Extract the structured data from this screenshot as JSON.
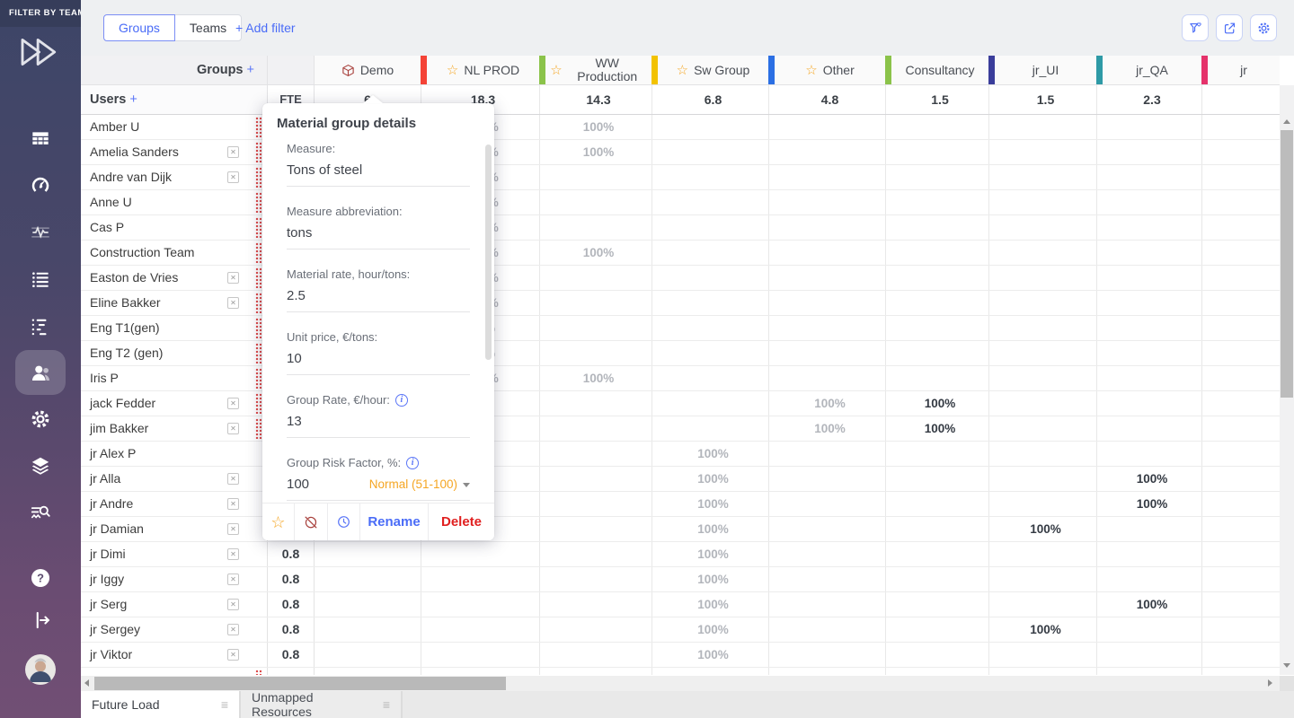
{
  "app": {
    "accent": "#4a6cf7",
    "danger": "#e02020",
    "warning": "#f5a623"
  },
  "sidebar": {
    "filter_header": "FILTER BY TEAM",
    "nav": [
      {
        "icon": "table-icon",
        "active": false
      },
      {
        "icon": "gauge-icon",
        "active": false
      },
      {
        "icon": "activity-icon",
        "active": false
      },
      {
        "icon": "list-icon",
        "active": false
      },
      {
        "icon": "timeline-icon",
        "active": false
      },
      {
        "icon": "users-icon",
        "active": true
      },
      {
        "icon": "gear-icon",
        "active": false
      },
      {
        "icon": "layers-icon",
        "active": false
      },
      {
        "icon": "search-list-icon",
        "active": false
      }
    ],
    "bottom": [
      {
        "icon": "help-icon"
      },
      {
        "icon": "logout-icon"
      },
      {
        "icon": "avatar"
      }
    ]
  },
  "topbar": {
    "view_tabs": [
      {
        "label": "Groups",
        "active": true
      },
      {
        "label": "Teams",
        "active": false
      }
    ],
    "add_filter": "+ Add filter",
    "actions": [
      {
        "icon": "filter-favorite-icon"
      },
      {
        "icon": "export-icon"
      },
      {
        "icon": "settings-icon"
      }
    ]
  },
  "grid": {
    "groups_label": "Groups",
    "groups_plus": "+",
    "users_label": "Users",
    "users_plus": "+",
    "fte_label": "FTE",
    "groups": [
      {
        "name": "Demo",
        "icon": "cube-icon",
        "bar": "#f44336",
        "fte": "6",
        "bold": false
      },
      {
        "name": "NL PROD",
        "icon": "star-icon",
        "bar": "#8bc34a",
        "fte": "18.3",
        "bold": false
      },
      {
        "name": "WW Production",
        "icon": "star-icon",
        "bar": "#f2c200",
        "fte": "14.3",
        "bold": false
      },
      {
        "name": "Sw Group",
        "icon": "star-icon",
        "bar": "#2b6fe4",
        "fte": "6.8",
        "bold": false
      },
      {
        "name": "Other",
        "icon": "star-icon",
        "bar": "#8bc34a",
        "fte": "4.8",
        "bold": false
      },
      {
        "name": "Consultancy",
        "icon": null,
        "bar": "#3a3d9b",
        "fte": "1.5",
        "bold": true
      },
      {
        "name": "jr_UI",
        "icon": null,
        "bar": "#2e9aa6",
        "fte": "1.5",
        "bold": true
      },
      {
        "name": "jr_QA",
        "icon": null,
        "bar": "#e5326b",
        "fte": "2.3",
        "bold": true
      },
      {
        "name": "jr",
        "icon": null,
        "bar": null,
        "fte": "",
        "bold": false
      }
    ],
    "users": [
      {
        "name": "Amber U",
        "removable": false,
        "alert_dots": true,
        "fte": "",
        "alloc": {
          "NL PROD": "100%",
          "WW Production": "100%"
        }
      },
      {
        "name": "Amelia Sanders",
        "removable": true,
        "alert_dots": true,
        "fte": "",
        "alloc": {
          "NL PROD": "100%",
          "WW Production": "100%"
        }
      },
      {
        "name": "Andre van Dijk",
        "removable": true,
        "alert_dots": true,
        "fte": "",
        "alloc": {
          "NL PROD": "100%"
        }
      },
      {
        "name": "Anne U",
        "removable": false,
        "alert_dots": true,
        "fte": "",
        "alloc": {
          "NL PROD": "100%"
        }
      },
      {
        "name": "Cas P",
        "removable": false,
        "alert_dots": true,
        "fte": "",
        "alloc": {
          "NL PROD": "100%"
        }
      },
      {
        "name": "Construction Team",
        "removable": false,
        "alert_dots": true,
        "fte": "",
        "alloc": {
          "NL PROD": "100%",
          "WW Production": "100%"
        }
      },
      {
        "name": "Easton de Vries",
        "removable": true,
        "alert_dots": true,
        "fte": "",
        "alloc": {
          "NL PROD": "100%"
        }
      },
      {
        "name": "Eline Bakker",
        "removable": true,
        "alert_dots": true,
        "fte": "",
        "alloc": {
          "NL PROD": "100%"
        }
      },
      {
        "name": "Eng T1(gen)",
        "removable": false,
        "alert_dots": true,
        "fte": "",
        "alloc": {
          "NL PROD": "50%"
        }
      },
      {
        "name": "Eng T2 (gen)",
        "removable": false,
        "alert_dots": true,
        "fte": "",
        "alloc": {
          "NL PROD": "50%"
        }
      },
      {
        "name": "Iris P",
        "removable": false,
        "alert_dots": true,
        "fte": "",
        "alloc": {
          "NL PROD": "100%",
          "WW Production": "100%"
        }
      },
      {
        "name": "jack Fedder",
        "removable": true,
        "alert_dots": true,
        "fte": "",
        "alloc": {
          "Other": "100%",
          "Consultancy": "100%"
        }
      },
      {
        "name": "jim Bakker",
        "removable": true,
        "alert_dots": true,
        "fte": "",
        "alloc": {
          "Other": "100%",
          "Consultancy": "100%"
        }
      },
      {
        "name": "jr Alex P",
        "removable": false,
        "alert_dots": false,
        "fte": "",
        "alloc": {
          "Sw Group": "100%"
        }
      },
      {
        "name": "jr Alla",
        "removable": true,
        "alert_dots": false,
        "fte": "",
        "alloc": {
          "Sw Group": "100%",
          "jr_QA": "100%"
        }
      },
      {
        "name": "jr Andre",
        "removable": true,
        "alert_dots": false,
        "fte": "",
        "alloc": {
          "Sw Group": "100%",
          "jr_QA": "100%"
        }
      },
      {
        "name": "jr Damian",
        "removable": true,
        "alert_dots": false,
        "fte": "",
        "alloc": {
          "Sw Group": "100%",
          "jr_UI": "100%"
        }
      },
      {
        "name": "jr Dimi",
        "removable": true,
        "alert_dots": false,
        "fte": "0.8",
        "alloc": {
          "Sw Group": "100%"
        }
      },
      {
        "name": "jr Iggy",
        "removable": true,
        "alert_dots": false,
        "fte": "0.8",
        "alloc": {
          "Sw Group": "100%"
        }
      },
      {
        "name": "jr Serg",
        "removable": true,
        "alert_dots": false,
        "fte": "0.8",
        "alloc": {
          "Sw Group": "100%",
          "jr_QA": "100%"
        }
      },
      {
        "name": "jr Sergey",
        "removable": true,
        "alert_dots": false,
        "fte": "0.8",
        "alloc": {
          "Sw Group": "100%",
          "jr_UI": "100%"
        }
      },
      {
        "name": "jr Viktor",
        "removable": true,
        "alert_dots": false,
        "fte": "0.8",
        "alloc": {
          "Sw Group": "100%"
        }
      },
      {
        "name": "",
        "removable": false,
        "alert_dots": true,
        "fte": "",
        "alloc": {}
      }
    ]
  },
  "popup": {
    "title": "Material group details",
    "fields": [
      {
        "label": "Measure:",
        "value": "Tons of steel",
        "info": false
      },
      {
        "label": "Measure abbreviation:",
        "value": "tons",
        "info": false
      },
      {
        "label": "Material rate, hour/tons:",
        "value": "2.5",
        "info": false
      },
      {
        "label": "Unit price, €/tons:",
        "value": "10",
        "info": false
      },
      {
        "label": "Group Rate, €/hour:",
        "value": "13",
        "info": true
      },
      {
        "label": "Group Risk Factor, %:",
        "value": "100",
        "info": true,
        "badge": "Normal (51-100)"
      }
    ],
    "footer": {
      "icons": [
        "star-icon",
        "hide-icon",
        "clock-icon"
      ],
      "rename": "Rename",
      "delete": "Delete"
    }
  },
  "bottom": {
    "tabs": [
      {
        "label": "Future Load",
        "active": true
      },
      {
        "label": "Unmapped Resources",
        "active": false
      }
    ]
  }
}
